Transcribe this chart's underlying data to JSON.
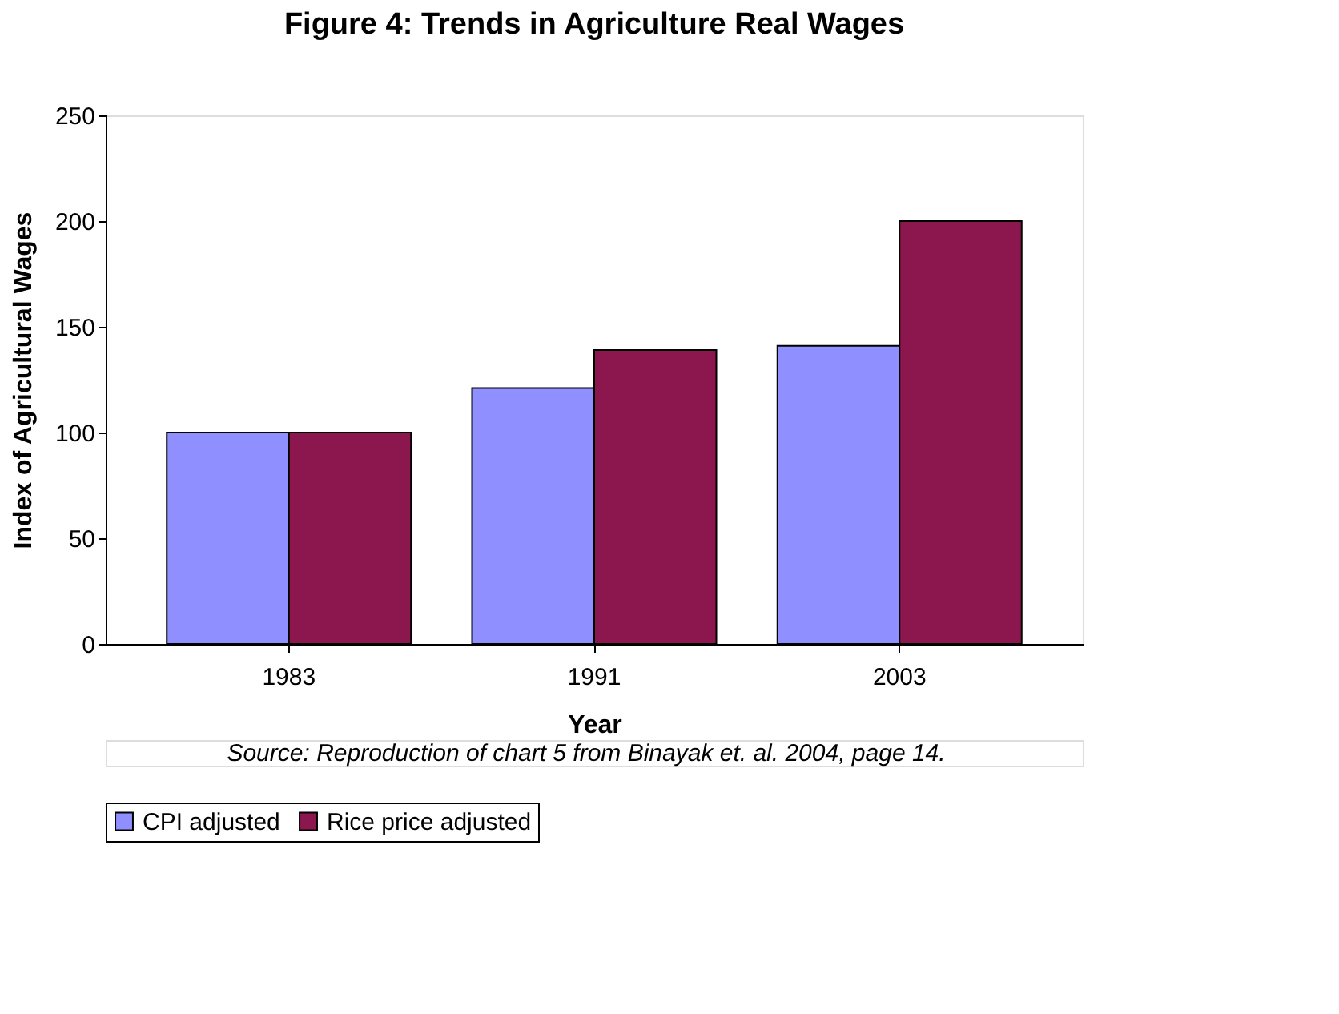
{
  "chart_data": {
    "type": "bar",
    "title": "Figure 4: Trends in Agriculture Real Wages",
    "xlabel": "Year",
    "ylabel": "Index of Agricultural Wages",
    "categories": [
      "1983",
      "1991",
      "2003"
    ],
    "series": [
      {
        "name": "CPI adjusted",
        "color": "#8f8fff",
        "values": [
          100,
          121,
          141
        ]
      },
      {
        "name": "Rice price adjusted",
        "color": "#8b174e",
        "values": [
          100,
          139,
          200
        ]
      }
    ],
    "ylim": [
      0,
      250
    ],
    "yticks": [
      0,
      50,
      100,
      150,
      200,
      250
    ],
    "grid": false,
    "legend": "bottom",
    "annotations": [
      "Source: Reproduction of chart 5 from Binayak et. al. 2004, page 14."
    ]
  }
}
